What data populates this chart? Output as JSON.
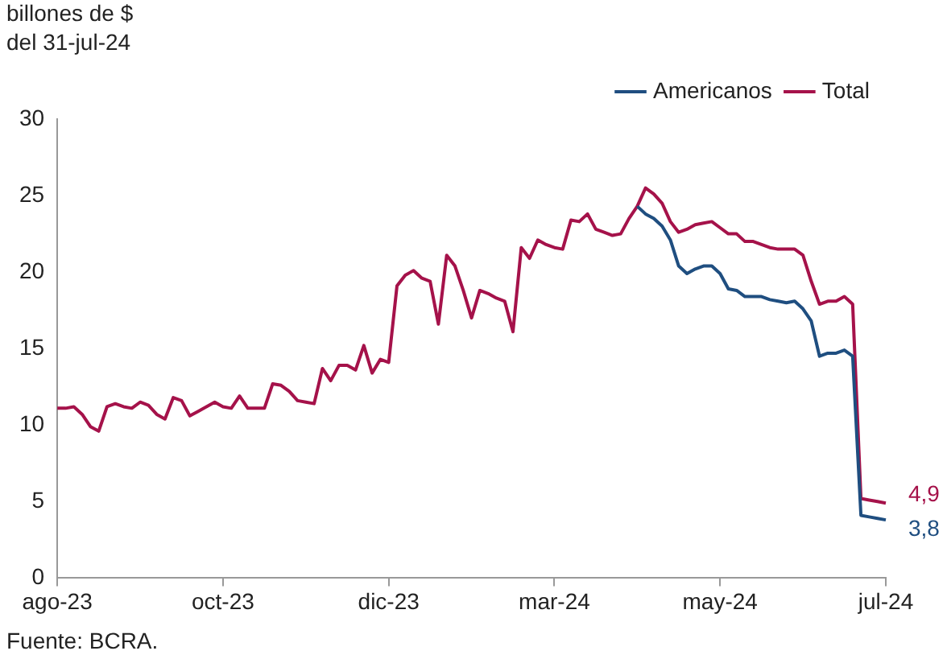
{
  "chart_data": {
    "type": "line",
    "ylabel": "billones de $\ndel 31-jul-24",
    "categories": [
      "ago-23",
      null,
      null,
      null,
      null,
      null,
      null,
      null,
      null,
      null,
      null,
      null,
      null,
      null,
      null,
      null,
      null,
      null,
      null,
      null,
      "oct-23",
      null,
      null,
      null,
      null,
      null,
      null,
      null,
      null,
      null,
      null,
      null,
      null,
      null,
      null,
      null,
      null,
      null,
      null,
      null,
      "dic-23",
      null,
      null,
      null,
      null,
      null,
      null,
      null,
      null,
      null,
      null,
      null,
      null,
      null,
      null,
      null,
      null,
      null,
      null,
      null,
      "mar-24",
      null,
      null,
      null,
      null,
      null,
      null,
      null,
      null,
      null,
      null,
      null,
      null,
      null,
      null,
      null,
      null,
      null,
      null,
      null,
      "may-24",
      null,
      null,
      null,
      null,
      null,
      null,
      null,
      null,
      null,
      null,
      null,
      null,
      null,
      null,
      null,
      null,
      null,
      null,
      null,
      "jul-24"
    ],
    "series": [
      {
        "name": "Americanos",
        "color": "#1f4e80",
        "values": [
          null,
          null,
          null,
          null,
          null,
          null,
          null,
          null,
          null,
          null,
          null,
          null,
          null,
          null,
          null,
          null,
          null,
          null,
          null,
          null,
          null,
          null,
          null,
          null,
          null,
          null,
          null,
          null,
          null,
          null,
          null,
          null,
          null,
          null,
          null,
          null,
          null,
          null,
          null,
          null,
          null,
          null,
          null,
          null,
          null,
          null,
          null,
          null,
          null,
          null,
          null,
          null,
          null,
          null,
          null,
          null,
          null,
          null,
          null,
          null,
          null,
          null,
          null,
          null,
          null,
          null,
          null,
          null,
          null,
          null,
          24.3,
          23.8,
          23.5,
          23.0,
          22.1,
          20.4,
          19.9,
          20.2,
          20.4,
          20.4,
          19.9,
          18.9,
          18.8,
          18.4,
          18.4,
          18.4,
          18.2,
          18.1,
          18.0,
          18.1,
          17.6,
          16.8,
          14.5,
          14.7,
          14.7,
          14.9,
          14.5,
          4.1,
          4.0,
          3.9,
          3.8
        ],
        "value_labels": [
          null,
          null,
          null,
          null,
          null,
          null,
          null,
          null,
          null,
          null,
          null,
          null,
          null,
          null,
          null,
          null,
          null,
          null,
          null,
          null,
          null,
          null,
          null,
          null,
          null,
          null,
          null,
          null,
          null,
          null,
          null,
          null,
          null,
          null,
          null,
          null,
          null,
          null,
          null,
          null,
          null,
          null,
          null,
          null,
          null,
          null,
          null,
          null,
          null,
          null,
          null,
          null,
          null,
          null,
          null,
          null,
          null,
          null,
          null,
          null,
          null,
          null,
          null,
          null,
          null,
          null,
          null,
          null,
          null,
          null,
          null,
          null,
          null,
          null,
          null,
          null,
          null,
          null,
          null,
          null,
          null,
          null,
          null,
          null,
          null,
          null,
          null,
          null,
          null,
          null,
          null,
          null,
          null,
          null,
          null,
          null,
          null,
          null,
          null,
          null,
          "3,8"
        ]
      },
      {
        "name": "Total",
        "color": "#a5124a",
        "values": [
          11.1,
          11.1,
          11.2,
          10.7,
          9.9,
          9.6,
          11.2,
          11.4,
          11.2,
          11.1,
          11.5,
          11.3,
          10.7,
          10.4,
          11.8,
          11.6,
          10.6,
          10.9,
          11.2,
          11.5,
          11.2,
          11.1,
          11.9,
          11.1,
          11.1,
          11.1,
          12.7,
          12.6,
          12.2,
          11.6,
          11.5,
          11.4,
          13.7,
          12.9,
          13.9,
          13.9,
          13.6,
          15.2,
          13.4,
          14.3,
          14.1,
          19.1,
          19.8,
          20.1,
          19.6,
          19.4,
          16.6,
          21.1,
          20.4,
          18.8,
          17.0,
          18.8,
          18.6,
          18.3,
          18.1,
          16.1,
          21.6,
          20.9,
          22.1,
          21.8,
          21.6,
          21.5,
          23.4,
          23.3,
          23.8,
          22.8,
          22.6,
          22.4,
          22.5,
          23.5,
          24.3,
          25.5,
          25.1,
          24.5,
          23.3,
          22.6,
          22.8,
          23.1,
          23.2,
          23.3,
          22.9,
          22.5,
          22.5,
          22.0,
          22.0,
          21.8,
          21.6,
          21.5,
          21.5,
          21.5,
          21.1,
          19.4,
          17.9,
          18.1,
          18.1,
          18.4,
          17.9,
          5.2,
          5.1,
          5.0,
          4.9
        ],
        "value_labels": [
          null,
          null,
          null,
          null,
          null,
          null,
          null,
          null,
          null,
          null,
          null,
          null,
          null,
          null,
          null,
          null,
          null,
          null,
          null,
          null,
          null,
          null,
          null,
          null,
          null,
          null,
          null,
          null,
          null,
          null,
          null,
          null,
          null,
          null,
          null,
          null,
          null,
          null,
          null,
          null,
          null,
          null,
          null,
          null,
          null,
          null,
          null,
          null,
          null,
          null,
          null,
          null,
          null,
          null,
          null,
          null,
          null,
          null,
          null,
          null,
          null,
          null,
          null,
          null,
          null,
          null,
          null,
          null,
          null,
          null,
          null,
          null,
          null,
          null,
          null,
          null,
          null,
          null,
          null,
          null,
          null,
          null,
          null,
          null,
          null,
          null,
          null,
          null,
          null,
          null,
          null,
          null,
          null,
          null,
          null,
          null,
          null,
          null,
          null,
          null,
          "4,9"
        ]
      }
    ],
    "ylim": [
      0,
      30
    ],
    "yticks": [
      0,
      5,
      10,
      15,
      20,
      25,
      30
    ],
    "grid": false,
    "legend": "top right",
    "marker": "none",
    "line_style": "solid",
    "annotations": [
      "Fuente: BCRA."
    ]
  }
}
